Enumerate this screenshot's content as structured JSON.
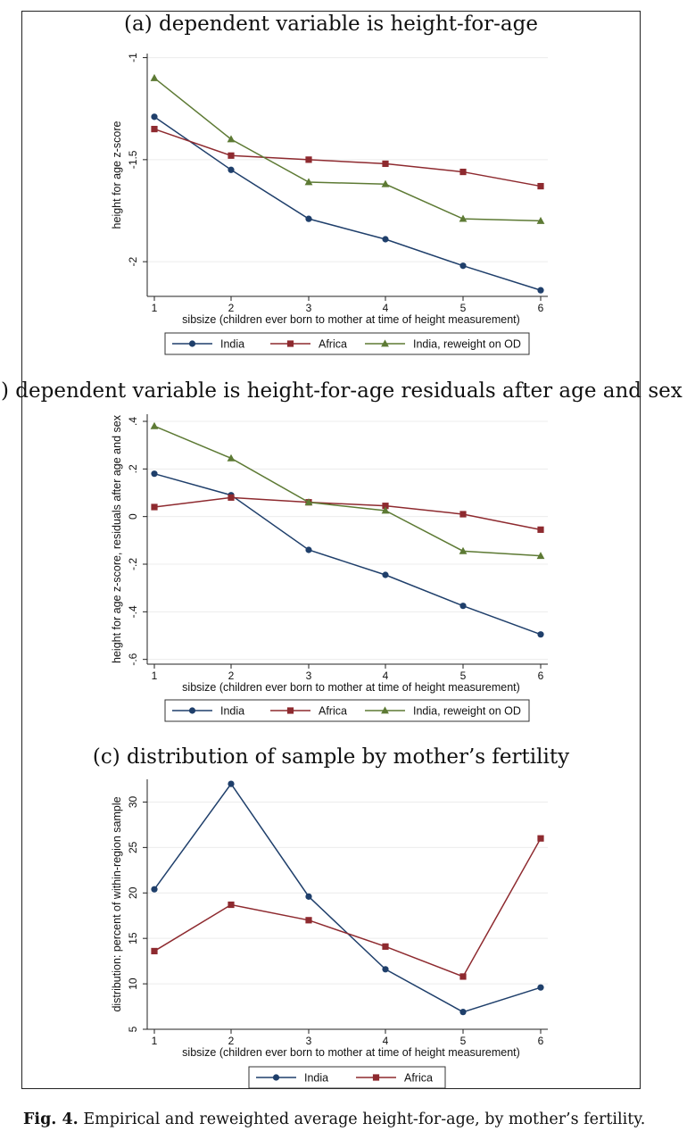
{
  "colors": {
    "India": "#1f3f6b",
    "Africa": "#8e2a2f",
    "India, reweight on OD": "#5d7a34"
  },
  "chart_data": [
    {
      "type": "line",
      "title": "(a) dependent variable is height-for-age",
      "xlabel": "sibsize (children ever born to mother at time of height measurement)",
      "ylabel": "height for age z-score",
      "x": [
        1,
        2,
        3,
        4,
        5,
        6
      ],
      "xticks": [
        "1",
        "2",
        "3",
        "4",
        "5",
        "6"
      ],
      "ylim": [
        -2.17,
        -0.98
      ],
      "yticks": [
        -1,
        -1.5,
        -2
      ],
      "ytick_labels": [
        "-1",
        "-1.5",
        "-2"
      ],
      "series": [
        {
          "name": "India",
          "marker": "circle",
          "values": [
            -1.29,
            -1.55,
            -1.79,
            -1.89,
            -2.02,
            -2.14
          ]
        },
        {
          "name": "Africa",
          "marker": "square",
          "values": [
            -1.35,
            -1.48,
            -1.5,
            -1.52,
            -1.56,
            -1.63
          ]
        },
        {
          "name": "India, reweight on OD",
          "marker": "triangle",
          "values": [
            -1.1,
            -1.4,
            -1.61,
            -1.62,
            -1.79,
            -1.8
          ]
        }
      ],
      "legend": [
        "India",
        "Africa",
        "India, reweight on OD"
      ]
    },
    {
      "type": "line",
      "title": "(b) dependent variable is height-for-age residuals after age and sex",
      "xlabel": "sibsize (children ever born to mother at time of height measurement)",
      "ylabel": "height for age z-score, residuals after age and sex",
      "x": [
        1,
        2,
        3,
        4,
        5,
        6
      ],
      "xticks": [
        "1",
        "2",
        "3",
        "4",
        "5",
        "6"
      ],
      "ylim": [
        -0.62,
        0.43
      ],
      "yticks": [
        0.4,
        0.2,
        0,
        -0.2,
        -0.4,
        -0.6
      ],
      "ytick_labels": [
        ".4",
        ".2",
        "0",
        "-.2",
        "-.4",
        "-.6"
      ],
      "series": [
        {
          "name": "India",
          "marker": "circle",
          "values": [
            0.18,
            0.09,
            -0.14,
            -0.245,
            -0.375,
            -0.495
          ]
        },
        {
          "name": "Africa",
          "marker": "square",
          "values": [
            0.04,
            0.08,
            0.06,
            0.045,
            0.01,
            -0.055
          ]
        },
        {
          "name": "India, reweight on OD",
          "marker": "triangle",
          "values": [
            0.38,
            0.245,
            0.06,
            0.025,
            -0.145,
            -0.165
          ]
        }
      ],
      "legend": [
        "India",
        "Africa",
        "India, reweight on OD"
      ]
    },
    {
      "type": "line",
      "title": "(c) distribution of sample by mother’s fertility",
      "xlabel": "sibsize (children ever born to mother at time of height measurement)",
      "ylabel": "distribution: percent of within-region sample",
      "x": [
        1,
        2,
        3,
        4,
        5,
        6
      ],
      "xticks": [
        "1",
        "2",
        "3",
        "4",
        "5",
        "6"
      ],
      "ylim": [
        5,
        32.5
      ],
      "yticks": [
        30,
        25,
        20,
        15,
        10,
        5
      ],
      "ytick_labels": [
        "30",
        "25",
        "20",
        "15",
        "10",
        "5"
      ],
      "series": [
        {
          "name": "India",
          "marker": "circle",
          "values": [
            20.4,
            32.0,
            19.6,
            11.6,
            6.9,
            9.6
          ]
        },
        {
          "name": "Africa",
          "marker": "square",
          "values": [
            13.6,
            18.7,
            17.0,
            14.1,
            10.8,
            26.0
          ]
        }
      ],
      "legend": [
        "India",
        "Africa"
      ]
    }
  ],
  "caption": {
    "label": "Fig. 4.",
    "text": " Empirical and reweighted average height-for-age, by mother’s fertility."
  }
}
